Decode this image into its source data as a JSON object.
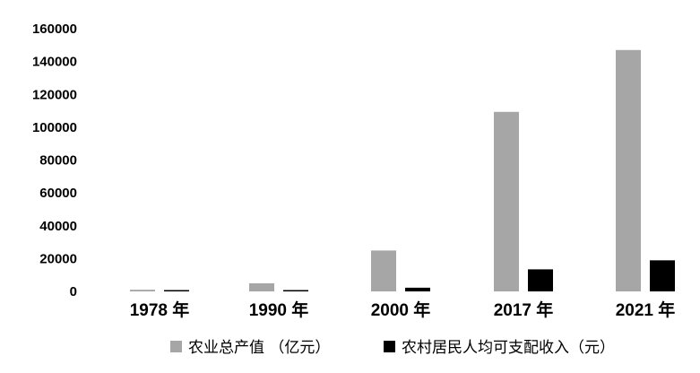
{
  "chart_data": {
    "type": "bar",
    "categories": [
      "1978 年",
      "1990 年",
      "2000 年",
      "2017 年",
      "2021 年"
    ],
    "series": [
      {
        "name": "农业总产值 （亿元）",
        "color": "#a6a6a6",
        "values": [
          1018,
          4954,
          24916,
          109332,
          147013
        ]
      },
      {
        "name": "农村居民人均可支配收入（元）",
        "color": "#000000",
        "values": [
          134,
          686,
          2253,
          13432,
          18931
        ]
      }
    ],
    "y_ticks": [
      "0",
      "20000",
      "40000",
      "60000",
      "80000",
      "100000",
      "120000",
      "140000",
      "160000"
    ],
    "ylim": [
      0,
      160000
    ],
    "grid": false,
    "legend_position": "bottom"
  }
}
